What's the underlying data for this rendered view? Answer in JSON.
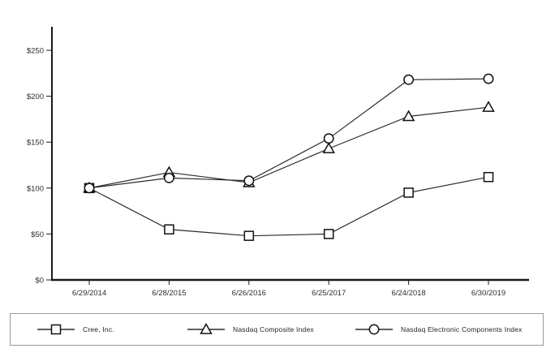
{
  "chart_data": {
    "type": "line",
    "title": "",
    "xlabel": "",
    "ylabel": "",
    "categories": [
      "6/29/2014",
      "6/28/2015",
      "6/26/2016",
      "6/25/2017",
      "6/24/2018",
      "6/30/2019"
    ],
    "series": [
      {
        "name": "Cree, Inc.",
        "marker": "square",
        "values": [
          100,
          55,
          48,
          50,
          95,
          112
        ]
      },
      {
        "name": "Nasdaq Composite Index",
        "marker": "triangle",
        "values": [
          100,
          117,
          106,
          143,
          178,
          188
        ]
      },
      {
        "name": "Nasdaq Electronic Components Index",
        "marker": "circle",
        "values": [
          100,
          111,
          108,
          154,
          218,
          219
        ]
      }
    ],
    "y_ticks": [
      {
        "value": 0,
        "label": "$0"
      },
      {
        "value": 50,
        "label": "$50"
      },
      {
        "value": 100,
        "label": "$100"
      },
      {
        "value": 150,
        "label": "$150"
      },
      {
        "value": 200,
        "label": "$200"
      },
      {
        "value": 250,
        "label": "$250"
      }
    ],
    "ylim": [
      0,
      276
    ],
    "grid": false,
    "legend_position": "bottom",
    "colors": {
      "line": "#2b2b2b",
      "marker_stroke": "#111111",
      "marker_fill": "#ffffff",
      "axis": "#1a1a1a",
      "text": "#2e2e2e",
      "legend_border": "#9a9a9a",
      "background": "#ffffff"
    }
  }
}
